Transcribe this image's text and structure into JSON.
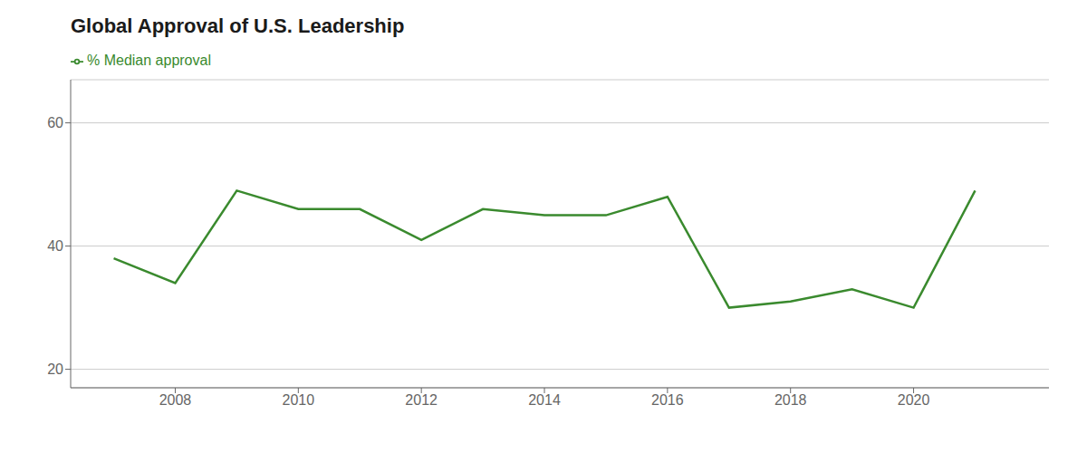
{
  "chart_data": {
    "type": "line",
    "title": "Global Approval of U.S. Leadership",
    "x": [
      2007,
      2008,
      2009,
      2010,
      2011,
      2012,
      2013,
      2014,
      2015,
      2016,
      2017,
      2018,
      2019,
      2020,
      2021
    ],
    "series": [
      {
        "name": "% Median approval",
        "color": "#3a8a2e",
        "values": [
          38,
          34,
          49,
          46,
          46,
          41,
          46,
          45,
          45,
          48,
          30,
          31,
          33,
          30,
          49
        ]
      }
    ],
    "xlim": [
      2006.3,
      2022.2
    ],
    "xticks": [
      2008,
      2010,
      2012,
      2014,
      2016,
      2018,
      2020
    ],
    "ylim": [
      17,
      67
    ],
    "yticks": [
      20,
      40,
      60
    ],
    "grid": true,
    "legend": "upper left"
  }
}
